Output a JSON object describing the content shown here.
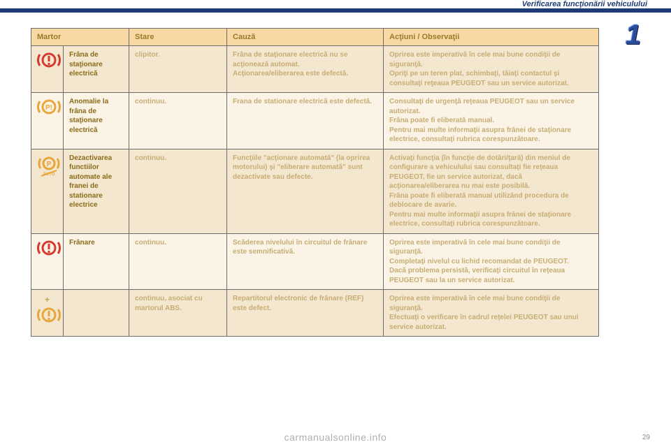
{
  "header": {
    "title": "Verificarea funcţionării vehiculului",
    "chapter": "1",
    "page_number": "29",
    "footer": "carmanualsonline.info"
  },
  "colors": {
    "header_bg": "#f9d9a3",
    "header_text": "#9a7a2a",
    "row_odd_bg": "#f4e7cf",
    "row_even_bg": "#fbf4e6",
    "name_text": "#8b6b1a",
    "body_text": "#c7ad74",
    "topbar": "#1f3b73",
    "icon_red": "#d63a2f",
    "icon_amber": "#e8a63a"
  },
  "table": {
    "headers": {
      "martor": "Martor",
      "stare": "Stare",
      "cauza": "Cauză",
      "actiuni": "Acţiuni / Observaţii"
    },
    "rows": [
      {
        "icon": "brake-red",
        "name": "Frâna de staţionare electrică",
        "state": "clipitor.",
        "cause": "Frâna de staţionare electrică nu se acţionează automat.\nAcţionarea/eliberarea este defectă.",
        "action": "Oprirea este imperativă în cele mai bune condiţii de siguranţă.\nOpriţi pe un teren plat, schimbaţi, tăiaţi contactul şi consultaţi reţeaua PEUGEOT sau un service autorizat."
      },
      {
        "icon": "p-amber",
        "name": "Anomalie la frâna de staţionare electrică",
        "state": "continuu.",
        "cause": "Frana de stationare electrică este defectă.",
        "action": "Consultaţi de urgenţă reţeaua PEUGEOT sau un service autorizat.\nFrâna poate fi eliberată manual.\nPentru mai multe informaţii asupra frânei de staţionare electrice, consultaţi rubrica corespunzătoare."
      },
      {
        "icon": "auto-off-amber",
        "name": "Dezactivarea functiilor automate ale franei de stationare electrice",
        "state": "continuu.",
        "cause": "Funcţiile \"acţionare automată\" (la oprirea motorului) şi \"eliberare automată\" sunt dezactivate sau defecte.",
        "action": "Activaţi funcţia (în funcţie de dotări/ţară) din meniul de configurare a vehiculului sau consultaţi fie reţeaua PEUGEOT, fie un service autorizat, dacă acţionarea/eliberarea nu mai este posibilă.\nFrâna poate fi eliberată manual utilizând procedura de deblocare de avarie.\nPentru mai multe informaţii asupra frânei de staţionare electrice, consultaţi rubrica corespunzătoare."
      },
      {
        "icon": "brake-red",
        "name": "Frânare",
        "state": "continuu.",
        "cause": "Scăderea nivelului în circuitul de frânare este semnificativă.",
        "action": "Oprirea este imperativă în cele mai bune condiţii de siguranţă.\nCompletaţi nivelul cu lichid recomandat de PEUGEOT.\nDacă problema persistă, verificaţi circuitul în reţeaua PEUGEOT sau la un service autorizat."
      },
      {
        "icon": "plus-abs-amber",
        "name": "",
        "state": "continuu, asociat cu martorul ABS.",
        "cause": "Repartitorul electronic de frânare (REF) este defect.",
        "action": "Oprirea este imperativă în cele mai bune condiţii de siguranţă.\nEfectuaţi o verificare în cadrul reţelei PEUGEOT sau unui service autorizat."
      }
    ]
  }
}
